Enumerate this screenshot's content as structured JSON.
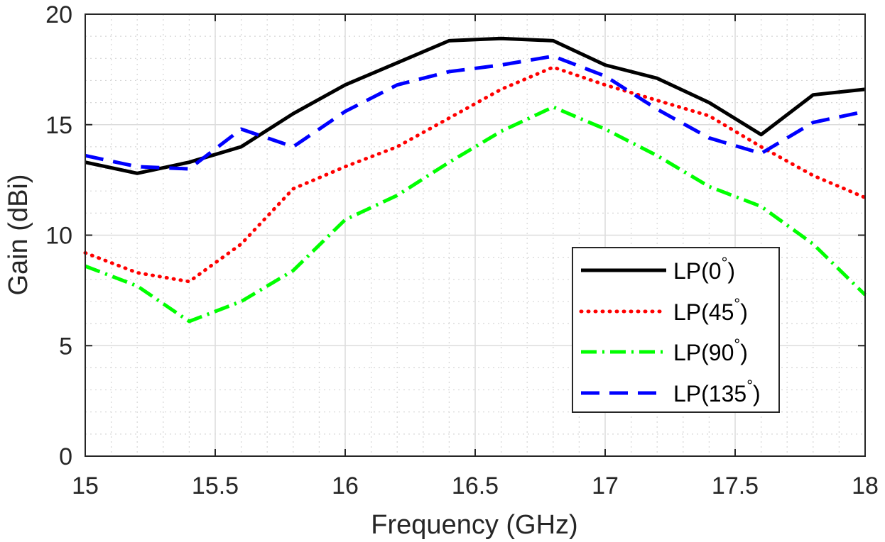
{
  "chart_data": {
    "type": "line",
    "title": "",
    "xlabel": "Frequency (GHz)",
    "ylabel": "Gain (dBi)",
    "xlim": [
      15,
      18
    ],
    "ylim": [
      0,
      20
    ],
    "xticks": [
      15,
      15.5,
      16,
      16.5,
      17,
      17.5,
      18
    ],
    "xtick_labels": [
      "15",
      "15.5",
      "16",
      "16.5",
      "17",
      "17.5",
      "18"
    ],
    "yticks": [
      0,
      5,
      10,
      15,
      20
    ],
    "ytick_labels": [
      "0",
      "5",
      "10",
      "15",
      "20"
    ],
    "grid": true,
    "minor_grid": true,
    "legend_position": "center-right",
    "x": [
      15.0,
      15.2,
      15.4,
      15.6,
      15.8,
      16.0,
      16.2,
      16.4,
      16.6,
      16.8,
      17.0,
      17.2,
      17.4,
      17.6,
      17.8,
      18.0
    ],
    "series": [
      {
        "name": "LP(0°)",
        "label": "LP(0",
        "label_suffix": ")",
        "superscript": "°",
        "color": "#000000",
        "style": "solid",
        "values": [
          13.3,
          12.8,
          13.3,
          14.0,
          15.5,
          16.8,
          17.8,
          18.8,
          18.9,
          18.8,
          17.7,
          17.1,
          16.0,
          14.55,
          16.35,
          16.6
        ]
      },
      {
        "name": "LP(45°)",
        "label": "LP(45",
        "label_suffix": ")",
        "superscript": "°",
        "color": "#ff0000",
        "style": "dotted",
        "values": [
          9.2,
          8.3,
          7.9,
          9.6,
          12.1,
          13.1,
          14.0,
          15.3,
          16.6,
          17.6,
          16.8,
          16.1,
          15.4,
          14.0,
          12.7,
          11.7
        ]
      },
      {
        "name": "LP(90°)",
        "label": "LP(90",
        "label_suffix": ")",
        "superscript": "°",
        "color": "#00ff00",
        "style": "dashdot",
        "values": [
          8.6,
          7.7,
          6.1,
          7.0,
          8.4,
          10.7,
          11.8,
          13.3,
          14.7,
          15.8,
          14.8,
          13.6,
          12.2,
          11.3,
          9.6,
          7.3
        ]
      },
      {
        "name": "LP(135°)",
        "label": "LP(135",
        "label_suffix": ")",
        "superscript": "°",
        "color": "#0000ff",
        "style": "dashed",
        "values": [
          13.6,
          13.1,
          13.0,
          14.8,
          14.0,
          15.6,
          16.8,
          17.4,
          17.7,
          18.1,
          17.2,
          15.7,
          14.4,
          13.7,
          15.1,
          15.6
        ]
      }
    ]
  }
}
